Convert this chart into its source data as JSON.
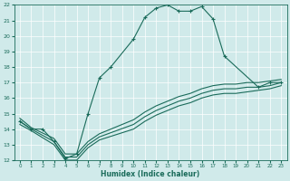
{
  "xlabel": "Humidex (Indice chaleur)",
  "xlim": [
    -0.5,
    23.5
  ],
  "ylim": [
    12,
    22
  ],
  "yticks": [
    12,
    13,
    14,
    15,
    16,
    17,
    18,
    19,
    20,
    21,
    22
  ],
  "xticks": [
    0,
    1,
    2,
    3,
    4,
    5,
    6,
    7,
    8,
    9,
    10,
    11,
    12,
    13,
    14,
    15,
    16,
    17,
    18,
    19,
    20,
    21,
    22,
    23
  ],
  "background_color": "#d0eaea",
  "line_color": "#1a6b5a",
  "grid_color": "#ffffff",
  "main_x": [
    0,
    1,
    2,
    3,
    4,
    5,
    6,
    7,
    8,
    10,
    11,
    12,
    13,
    14,
    15,
    16,
    17,
    18,
    21,
    22,
    23
  ],
  "main_y": [
    14.5,
    14.0,
    14.0,
    13.2,
    12.1,
    12.4,
    15.0,
    17.3,
    18.0,
    19.8,
    21.2,
    21.8,
    22.0,
    21.6,
    21.6,
    21.9,
    21.1,
    18.7,
    16.7,
    17.0,
    17.0
  ],
  "line2_x": [
    0,
    1,
    3,
    4,
    5,
    6,
    7,
    10,
    11,
    12,
    13,
    14,
    15,
    16,
    17,
    18,
    19,
    20,
    21,
    22,
    23
  ],
  "line2_y": [
    14.5,
    14.0,
    13.2,
    12.2,
    12.2,
    13.0,
    13.5,
    14.3,
    14.8,
    15.2,
    15.5,
    15.8,
    16.0,
    16.3,
    16.5,
    16.6,
    16.6,
    16.7,
    16.7,
    16.8,
    17.0
  ],
  "line3_x": [
    0,
    1,
    3,
    4,
    5,
    6,
    7,
    10,
    11,
    12,
    13,
    14,
    15,
    16,
    17,
    18,
    19,
    20,
    21,
    22,
    23
  ],
  "line3_y": [
    14.3,
    13.9,
    13.0,
    12.0,
    12.0,
    12.8,
    13.3,
    14.0,
    14.5,
    14.9,
    15.2,
    15.5,
    15.7,
    16.0,
    16.2,
    16.3,
    16.3,
    16.4,
    16.5,
    16.6,
    16.8
  ],
  "line4_x": [
    0,
    1,
    3,
    4,
    5,
    6,
    7,
    10,
    11,
    12,
    13,
    14,
    15,
    16,
    17,
    18,
    19,
    20,
    21,
    22,
    23
  ],
  "line4_y": [
    14.7,
    14.1,
    13.4,
    12.4,
    12.4,
    13.2,
    13.7,
    14.6,
    15.1,
    15.5,
    15.8,
    16.1,
    16.3,
    16.6,
    16.8,
    16.9,
    16.9,
    17.0,
    17.0,
    17.1,
    17.2
  ]
}
